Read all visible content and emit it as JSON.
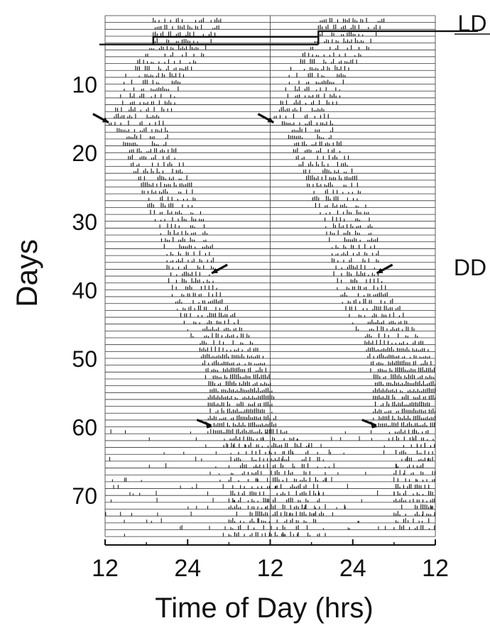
{
  "chart_data": {
    "type": "actogram",
    "xlabel": "Time of Day (hrs)",
    "ylabel": "Days",
    "x_ticks": [
      "12",
      "24",
      "12",
      "24",
      "12"
    ],
    "x_tick_hours": [
      12,
      24,
      36,
      48,
      60
    ],
    "x_range_hours": [
      12,
      60
    ],
    "double_plotted": true,
    "y_ticks": [
      10,
      20,
      30,
      40,
      50,
      60,
      70
    ],
    "total_days": 76,
    "conditions": [
      {
        "label": "LD",
        "days": [
          1,
          4
        ]
      },
      {
        "label": "DD",
        "days": [
          5,
          76
        ]
      }
    ],
    "lights_off_hour": 19,
    "activity_onset_hour_by_day": [
      [
        1,
        19
      ],
      [
        4,
        19
      ],
      [
        5,
        18.5
      ],
      [
        9,
        15
      ],
      [
        13,
        14
      ],
      [
        16,
        12.6
      ],
      [
        20,
        15
      ],
      [
        25,
        17
      ],
      [
        30,
        19
      ],
      [
        35,
        21
      ],
      [
        38,
        21
      ],
      [
        42,
        22
      ],
      [
        46,
        24
      ],
      [
        50,
        26
      ],
      [
        55,
        27
      ],
      [
        60,
        27
      ],
      [
        64,
        30
      ]
    ],
    "activity_duration_hours": [
      [
        1,
        10
      ],
      [
        5,
        9
      ],
      [
        16,
        8
      ],
      [
        38,
        7
      ],
      [
        50,
        9
      ],
      [
        60,
        10
      ],
      [
        65,
        14
      ]
    ],
    "arrow_markers": [
      {
        "day": 16,
        "hour": 12.5
      },
      {
        "day": 16,
        "hour": 36.5
      },
      {
        "day": 38,
        "hour": 27.5
      },
      {
        "day": 38,
        "hour": 51.5
      },
      {
        "day": 60,
        "hour": 27
      },
      {
        "day": 60,
        "hour": 51
      }
    ]
  }
}
